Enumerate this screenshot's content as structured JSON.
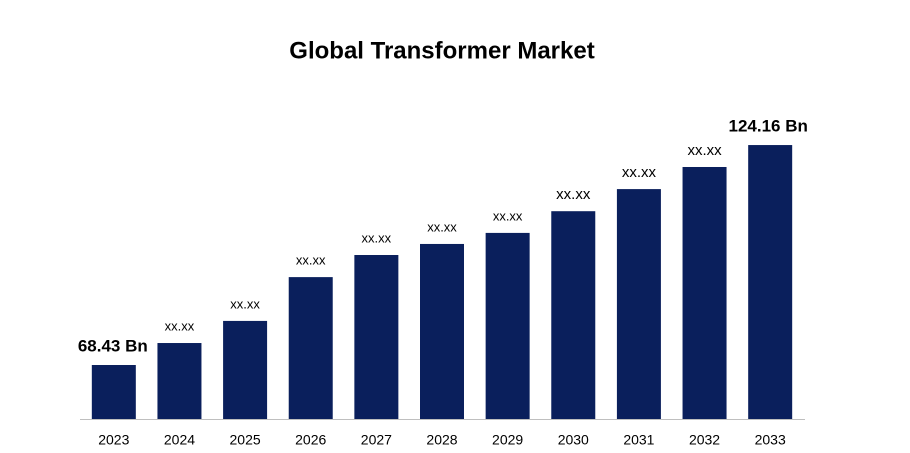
{
  "chart_data": {
    "type": "bar",
    "title": "Global Transformer Market",
    "categories": [
      "2023",
      "2024",
      "2025",
      "2026",
      "2027",
      "2028",
      "2029",
      "2030",
      "2031",
      "2032",
      "2033"
    ],
    "values": [
      68.43,
      74.0,
      79.6,
      90.7,
      96.3,
      99.1,
      101.9,
      107.4,
      113.0,
      118.6,
      124.16
    ],
    "value_labels": [
      "68.43 Bn",
      "xx.xx",
      "xx.xx",
      "xx.xx",
      "xx.xx",
      "xx.xx",
      "xx.xx",
      "xx.xx",
      "xx.xx",
      "xx.xx",
      "124.16 Bn"
    ],
    "color": "#0a1f5c",
    "ylim": [
      54.75,
      130
    ]
  }
}
